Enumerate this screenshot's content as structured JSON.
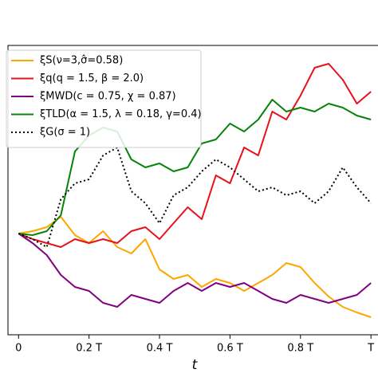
{
  "chart_data": {
    "type": "line",
    "x_label": "t",
    "x": [
      0,
      0.04,
      0.08,
      0.12,
      0.16,
      0.2,
      0.24,
      0.28,
      0.32,
      0.36,
      0.4,
      0.44,
      0.48,
      0.52,
      0.56,
      0.6,
      0.64,
      0.68,
      0.72,
      0.76,
      0.8,
      0.84,
      0.88,
      0.92,
      0.96,
      1
    ],
    "xlim": [
      -0.03,
      1.02
    ],
    "xticks": [
      0,
      {
        "value": 0.2,
        "label": "0.2 T"
      },
      {
        "value": 0.4,
        "label": "0.4 T"
      },
      {
        "value": 0.6,
        "label": "0.6 T"
      },
      {
        "value": 0.8,
        "label": "0.8 T"
      },
      {
        "value": 1,
        "label": "T"
      }
    ],
    "ylim": [
      -2.54,
      4.72
    ],
    "legend": "upper left",
    "series": [
      {
        "name": "ξS(ν=3,σ̂=0.58)",
        "color": "#ffa500",
        "linestyle": "solid",
        "values": [
          0,
          0.06,
          0.16,
          0.42,
          -0.04,
          -0.24,
          0.06,
          -0.34,
          -0.5,
          -0.14,
          -0.9,
          -1.14,
          -1.04,
          -1.34,
          -1.14,
          -1.24,
          -1.44,
          -1.24,
          -1.04,
          -0.74,
          -0.84,
          -1.24,
          -1.58,
          -1.84,
          -1.98,
          -2.1
        ]
      },
      {
        "name": "ξq(q = 1.5, β = 2.0)",
        "color": "#e8111a",
        "linestyle": "solid",
        "values": [
          0,
          -0.14,
          -0.24,
          -0.34,
          -0.14,
          -0.24,
          -0.14,
          -0.24,
          0.06,
          0.16,
          -0.14,
          0.26,
          0.66,
          0.36,
          1.46,
          1.26,
          2.16,
          1.96,
          3.06,
          2.86,
          3.46,
          4.16,
          4.26,
          3.86,
          3.26,
          3.56
        ]
      },
      {
        "name": "ξMWD(c = 0.75, χ = 0.87)",
        "color": "#800080",
        "linestyle": "solid",
        "values": [
          0,
          -0.24,
          -0.54,
          -1.04,
          -1.34,
          -1.44,
          -1.74,
          -1.84,
          -1.54,
          -1.64,
          -1.74,
          -1.44,
          -1.24,
          -1.44,
          -1.24,
          -1.34,
          -1.24,
          -1.44,
          -1.64,
          -1.74,
          -1.54,
          -1.64,
          -1.74,
          -1.64,
          -1.54,
          -1.24
        ]
      },
      {
        "name": "ξTLD(α = 1.5, λ = 0.18, γ=0.4)",
        "color": "#078307",
        "linestyle": "solid",
        "values": [
          0,
          -0.04,
          0.06,
          0.46,
          2.06,
          2.46,
          2.66,
          2.56,
          1.86,
          1.66,
          1.76,
          1.56,
          1.66,
          2.26,
          2.36,
          2.76,
          2.56,
          2.86,
          3.36,
          3.06,
          3.16,
          3.06,
          3.26,
          3.16,
          2.96,
          2.86
        ]
      },
      {
        "name": "ξG(σ = 1)",
        "color": "#000000",
        "linestyle": "dotted",
        "values": [
          0,
          -0.14,
          -0.34,
          0.86,
          1.26,
          1.36,
          1.96,
          2.16,
          1.06,
          0.76,
          0.26,
          0.96,
          1.16,
          1.56,
          1.86,
          1.66,
          1.36,
          1.06,
          1.16,
          0.96,
          1.06,
          0.76,
          1.06,
          1.66,
          1.16,
          0.76
        ]
      }
    ]
  }
}
